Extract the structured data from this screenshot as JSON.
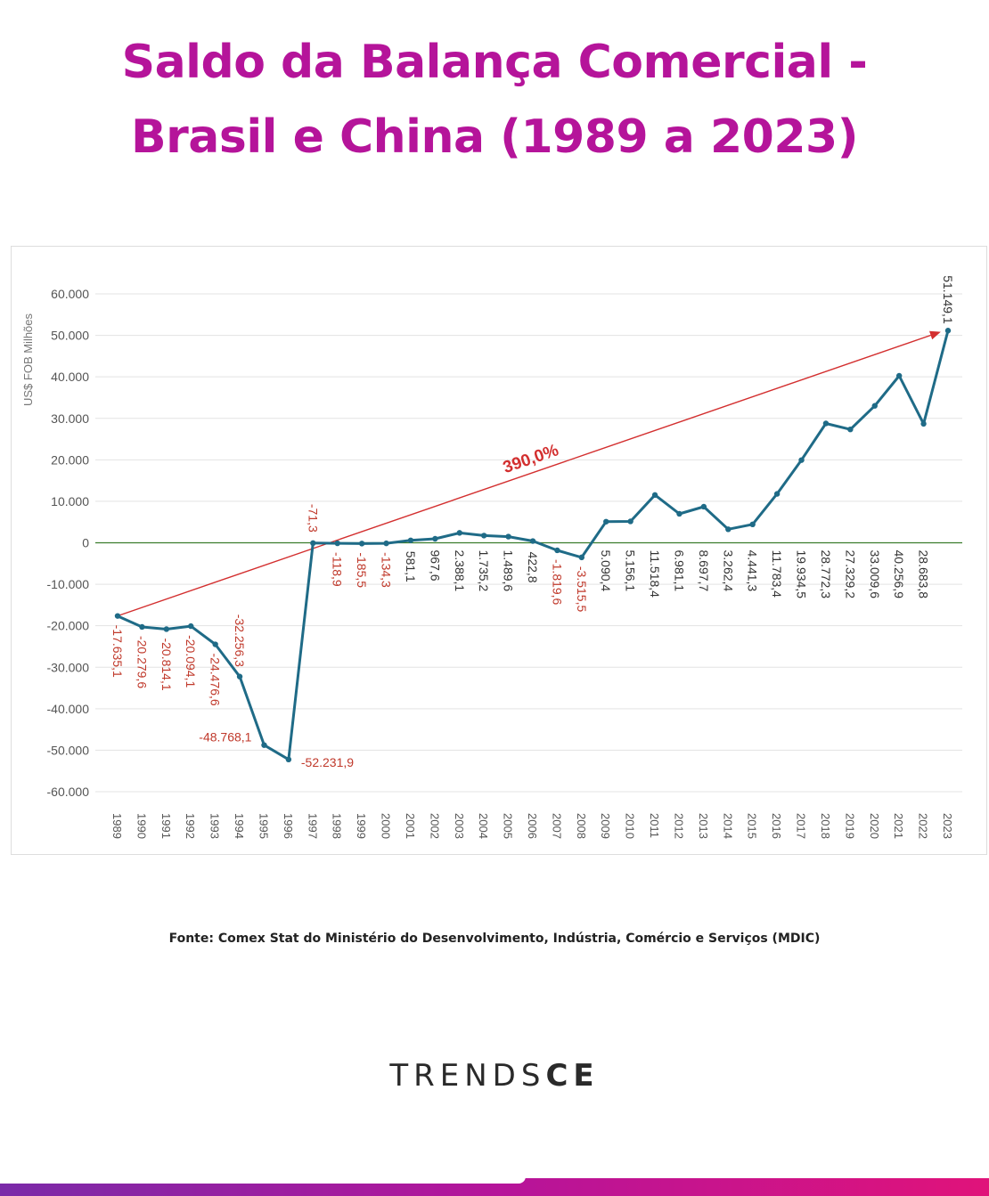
{
  "header": {
    "title_line1": "Saldo da Balança Comercial -",
    "title_line2": "Brasil e China (1989 a 2023)"
  },
  "colors": {
    "title": "#b5149a",
    "series_line": "#1f6b87",
    "negative_label": "#c0392b",
    "positive_label": "#333333",
    "zero_line": "#3a7d2c",
    "trend_arrow": "#d32f2f",
    "bar_gradient": [
      "#7a2aa8",
      "#b5149a",
      "#e0137a"
    ]
  },
  "chart_data": {
    "type": "line",
    "ylabel": "US$ FOB Milhões",
    "ylim": [
      -60000,
      60000
    ],
    "yticks": [
      {
        "value": 60000,
        "label": "60.000"
      },
      {
        "value": 50000,
        "label": "50.000"
      },
      {
        "value": 40000,
        "label": "40.000"
      },
      {
        "value": 30000,
        "label": "30.000"
      },
      {
        "value": 20000,
        "label": "20.000"
      },
      {
        "value": 10000,
        "label": "10.000"
      },
      {
        "value": 0,
        "label": "0"
      },
      {
        "value": -10000,
        "label": "-10.000"
      },
      {
        "value": -20000,
        "label": "-20.000"
      },
      {
        "value": -30000,
        "label": "-30.000"
      },
      {
        "value": -40000,
        "label": "-40.000"
      },
      {
        "value": -50000,
        "label": "-50.000"
      },
      {
        "value": -60000,
        "label": "-60.000"
      }
    ],
    "categories": [
      "1989",
      "1990",
      "1991",
      "1992",
      "1993",
      "1994",
      "1995",
      "1996",
      "1997",
      "1998",
      "1999",
      "2000",
      "2001",
      "2002",
      "2003",
      "2004",
      "2005",
      "2006",
      "2007",
      "2008",
      "2009",
      "2010",
      "2011",
      "2012",
      "2013",
      "2014",
      "2015",
      "2016",
      "2017",
      "2018",
      "2019",
      "2020",
      "2021",
      "2022",
      "2023"
    ],
    "values": [
      -17635.1,
      -20279.6,
      -20814.1,
      -20094.1,
      -24476.6,
      -32256.3,
      -48768.1,
      -52231.9,
      -71.3,
      -118.9,
      -185.5,
      -134.3,
      581.1,
      967.6,
      2388.1,
      1735.2,
      1489.6,
      422.8,
      -1819.6,
      -3515.5,
      5090.4,
      5156.1,
      11518.4,
      6981.1,
      8697.7,
      3262.4,
      4441.3,
      11783.4,
      19934.5,
      28772.3,
      27329.2,
      33009.6,
      40256.9,
      28683.8,
      51149.1
    ],
    "data_labels": [
      "-17.635,1",
      "-20.279,6",
      "-20.814,1",
      "-20.094,1",
      "-24.476,6",
      "-32.256,3",
      "-48.768,1",
      "-52.231,9",
      "-71,3",
      "-118,9",
      "-185,5",
      "-134,3",
      "581,1",
      "967,6",
      "2.388,1",
      "1.735,2",
      "1.489,6",
      "422,8",
      "-1.819,6",
      "-3.515,5",
      "5.090,4",
      "5.156,1",
      "11.518,4",
      "6.981,1",
      "8.697,7",
      "3.262,4",
      "4.441,3",
      "11.783,4",
      "19.934,5",
      "28.772,3",
      "27.329,2",
      "33.009,6",
      "40.256,9",
      "28.683,8",
      "51.149,1"
    ],
    "annotation": {
      "text": "390,0%",
      "from_year": "1989",
      "from_value": -17635.1,
      "to_year": "2023",
      "to_value": 51149.1
    },
    "grid": true,
    "legend": "none"
  },
  "footer": {
    "source": "Fonte: Comex Stat do Ministério do Desenvolvimento, Indústria, Comércio e Serviços (MDIC)",
    "brand_thin": "TRENDS",
    "brand_bold": "CE"
  }
}
